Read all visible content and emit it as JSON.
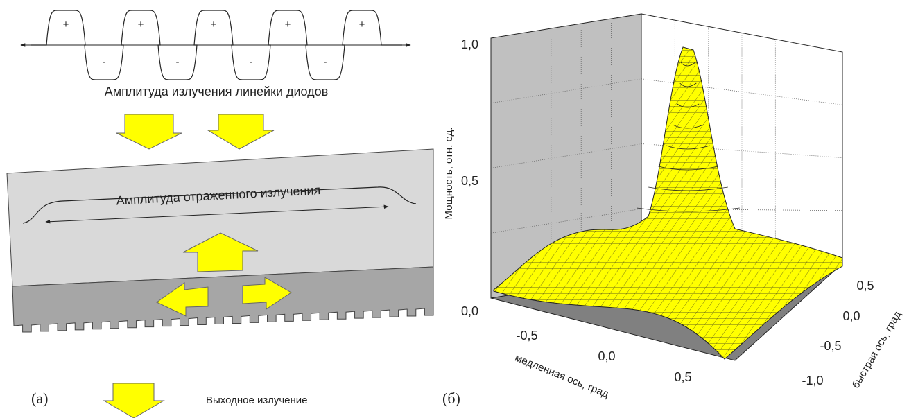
{
  "panel_a": {
    "wave_plus": [
      "+",
      "+",
      "+",
      "+",
      "+"
    ],
    "wave_minus": [
      "-",
      "-",
      "-",
      "-"
    ],
    "emission_label": "Амплитуда излучения линейки диодов",
    "reflected_label": "Амплитуда отраженного излучения",
    "panel_label": "(a)",
    "output_label": "Выходное излучение"
  },
  "panel_b": {
    "panel_label": "(б)",
    "z_axis_title": "Мощность, отн. ед.",
    "z_ticks": [
      "0,0",
      "0,5",
      "1,0"
    ],
    "x_axis_title": "медленная ось, град",
    "x_ticks": [
      "-0,5",
      "0,0",
      "0,5"
    ],
    "y_axis_title": "быстрая ось, град",
    "y_ticks": [
      "-1,0",
      "-0,5",
      "0,0",
      "0,5"
    ]
  }
}
